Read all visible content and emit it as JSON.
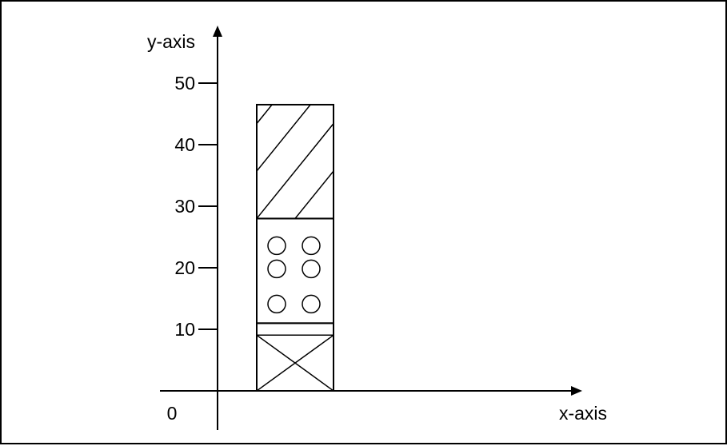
{
  "chart_data": {
    "type": "bar",
    "stacked": true,
    "xlabel": "x-axis",
    "ylabel": "y-axis",
    "origin_label": "0",
    "y_ticks": [
      10,
      20,
      30,
      40,
      50
    ],
    "ylim": [
      0,
      55
    ],
    "grid": false,
    "legend": "none",
    "categories": [
      ""
    ],
    "series": [
      {
        "values": [
          11
        ],
        "pattern": "cross"
      },
      {
        "values": [
          17
        ],
        "pattern": "circles"
      },
      {
        "values": [
          18.5
        ],
        "pattern": "diagonal-hatch"
      }
    ],
    "colors": {
      "stroke": "#000000",
      "fill": "#ffffff"
    }
  }
}
